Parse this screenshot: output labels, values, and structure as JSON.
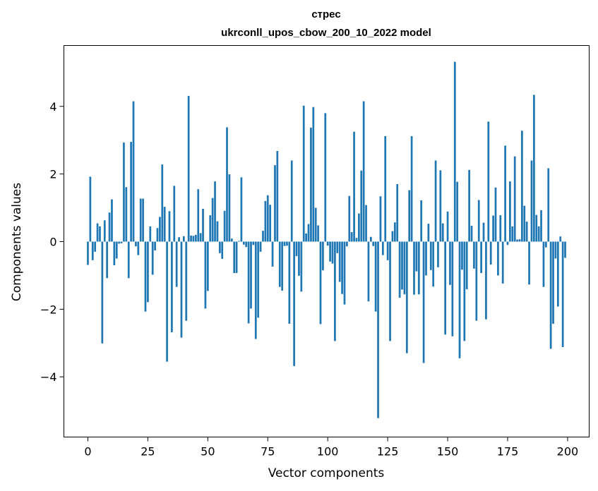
{
  "chart_data": {
    "type": "bar",
    "title": "стрес",
    "subtitle": "ukrconll_upos_cbow_200_10_2022 model",
    "xlabel": "Vector components",
    "ylabel": "Components values",
    "xlim": [
      -10,
      209
    ],
    "ylim": [
      -5.78,
      5.8
    ],
    "xticks": [
      0,
      25,
      50,
      75,
      100,
      125,
      150,
      175,
      200
    ],
    "yticks": [
      -4,
      -2,
      0,
      2,
      4
    ],
    "ytick_labels": [
      "−4",
      "−2",
      "0",
      "2",
      "4"
    ],
    "grid": false,
    "bar_color": "#1f77b4",
    "values": [
      -0.69,
      1.92,
      -0.55,
      -0.3,
      0.54,
      0.45,
      -3.01,
      0.63,
      -1.08,
      0.86,
      1.25,
      -0.7,
      -0.5,
      -0.06,
      -0.05,
      2.93,
      1.61,
      -1.08,
      2.95,
      4.15,
      -0.14,
      -0.4,
      1.27,
      1.27,
      -2.07,
      -1.79,
      0.45,
      -0.98,
      -0.26,
      0.4,
      0.73,
      2.28,
      1.03,
      -3.55,
      0.9,
      -2.68,
      1.65,
      -1.34,
      0.13,
      -2.84,
      0.16,
      -2.34,
      4.31,
      0.18,
      0.17,
      0.2,
      1.55,
      0.25,
      0.97,
      -1.98,
      -1.46,
      0.78,
      1.29,
      1.78,
      0.6,
      -0.34,
      -0.51,
      0.91,
      3.38,
      1.99,
      0.09,
      -0.93,
      -0.93,
      0.02,
      1.9,
      -0.09,
      -0.16,
      -2.42,
      -1.98,
      -0.1,
      -2.88,
      -2.25,
      -0.3,
      0.32,
      1.2,
      1.37,
      1.09,
      -0.74,
      2.26,
      2.68,
      -1.34,
      -1.45,
      -0.13,
      -0.12,
      -2.43,
      2.4,
      -3.68,
      -0.43,
      -1.01,
      -1.48,
      4.02,
      0.24,
      0.52,
      3.37,
      3.98,
      1.0,
      0.48,
      -2.44,
      -0.85,
      3.8,
      -0.12,
      -0.59,
      -0.65,
      -2.94,
      -0.34,
      -1.19,
      -1.55,
      -1.86,
      -0.14,
      1.35,
      0.28,
      3.25,
      0.11,
      0.83,
      2.1,
      4.15,
      1.08,
      -1.77,
      0.14,
      -0.13,
      -2.07,
      -5.22,
      1.34,
      -0.4,
      3.12,
      -0.55,
      -2.94,
      0.31,
      0.57,
      1.7,
      -1.66,
      -1.42,
      -1.56,
      -3.3,
      1.52,
      3.12,
      -1.57,
      -0.88,
      -1.56,
      1.22,
      -3.59,
      -1.0,
      0.53,
      -0.84,
      -1.33,
      2.4,
      -0.76,
      2.11,
      0.54,
      -2.75,
      0.89,
      -1.28,
      -2.8,
      5.32,
      1.77,
      -3.45,
      -0.83,
      -2.94,
      -1.41,
      2.12,
      0.47,
      -0.8,
      -2.34,
      1.23,
      -0.93,
      0.56,
      -2.3,
      3.55,
      -0.68,
      0.77,
      1.6,
      -1.0,
      0.78,
      -1.24,
      2.84,
      -0.1,
      1.78,
      0.45,
      2.52,
      0.06,
      0.07,
      3.28,
      1.06,
      0.59,
      -1.27,
      2.4,
      4.34,
      0.79,
      0.45,
      0.93,
      -1.34,
      -0.17,
      2.17,
      -3.17,
      -2.43,
      -0.5,
      -1.92,
      0.15,
      -3.12,
      -0.48
    ]
  }
}
